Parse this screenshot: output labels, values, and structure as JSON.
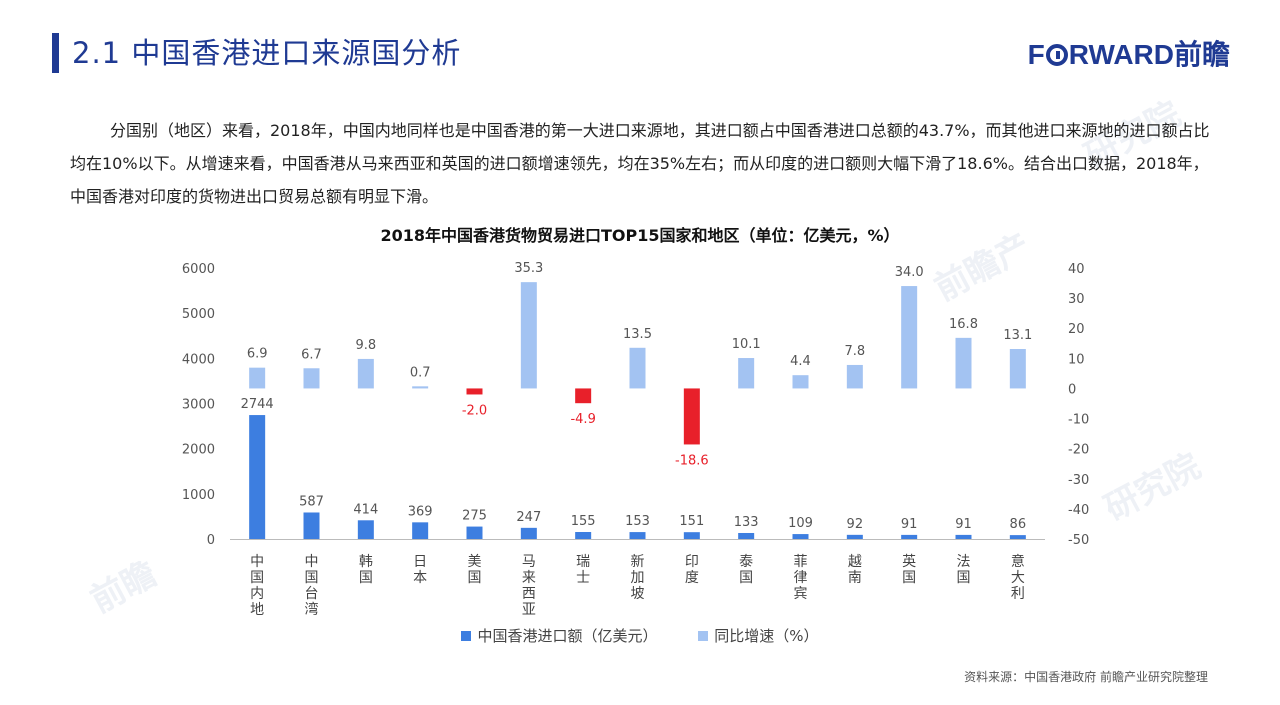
{
  "header": {
    "title": "2.1 中国香港进口来源国分析",
    "logo_left": "F",
    "logo_right": "RWARD前瞻"
  },
  "intro": "分国别（地区）来看，2018年，中国内地同样也是中国香港的第一大进口来源地，其进口额占中国香港进口总额的43.7%，而其他进口来源地的进口额占比均在10%以下。从增速来看，中国香港从马来西亚和英国的进口额增速领先，均在35%左右；而从印度的进口额则大幅下滑了18.6%。结合出口数据，2018年，中国香港对印度的货物进出口贸易总额有明显下滑。",
  "watermarks": [
    {
      "text": "研究院",
      "sub": ""
    },
    {
      "text": "前瞻产",
      "sub": ""
    },
    {
      "text": "前瞻",
      "sub": ""
    },
    {
      "text": "研究院",
      "sub": ""
    }
  ],
  "chart_data": {
    "type": "bar",
    "title": "2018年中国香港货物贸易进口TOP15国家和地区（单位：亿美元，%）",
    "categories": [
      "中国内地",
      "中国台湾",
      "韩国",
      "日本",
      "美国",
      "马来西亚",
      "瑞士",
      "新加坡",
      "印度",
      "泰国",
      "菲律宾",
      "越南",
      "英国",
      "法国",
      "意大利"
    ],
    "series": [
      {
        "name": "中国香港进口额（亿美元）",
        "axis": "left",
        "color": "#3d7ee0",
        "values": [
          2744,
          587,
          414,
          369,
          275,
          247,
          155,
          153,
          151,
          133,
          109,
          92,
          91,
          91,
          86
        ]
      },
      {
        "name": "同比增速（%）",
        "axis": "right",
        "color": "#a3c3f2",
        "negative_color": "#e8202a",
        "values": [
          6.9,
          6.7,
          9.8,
          0.7,
          -2.0,
          35.3,
          -4.9,
          13.5,
          -18.6,
          10.1,
          4.4,
          7.8,
          34.0,
          16.8,
          13.1
        ]
      }
    ],
    "y_left": {
      "min": 0,
      "max": 6000,
      "ticks": [
        "0",
        "1000",
        "2000",
        "3000",
        "4000",
        "5000",
        "6000"
      ]
    },
    "y_right": {
      "min": -50,
      "max": 40,
      "ticks": [
        "-50",
        "-40",
        "-30",
        "-20",
        "-10",
        "0",
        "10",
        "20",
        "30",
        "40"
      ]
    },
    "legend_position": "bottom",
    "grid": false
  },
  "source": "资料来源：中国香港政府  前瞻产业研究院整理"
}
